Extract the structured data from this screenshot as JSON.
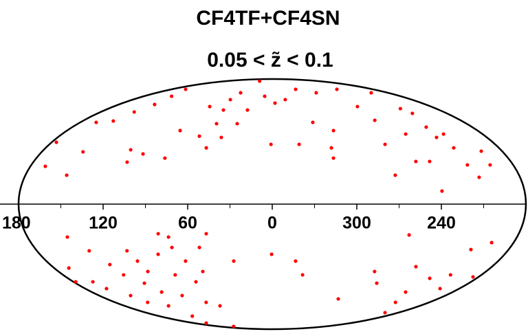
{
  "chart_data": {
    "type": "scatter",
    "title": "CF4TF+CF4SN",
    "subtitle": "0.05 < z̃ < 0.1",
    "color": "#ff0000",
    "ylim": [
      -90,
      90
    ],
    "xticks": [
      180,
      120,
      60,
      0,
      300,
      240
    ],
    "x": [
      168.9,
      149.9,
      176.2,
      147.8,
      165,
      150.9,
      111.5,
      109.3,
      100.1,
      144.8,
      138.1,
      81.9,
      80.8,
      141,
      61.6,
      52.4,
      51.6,
      52.6,
      54.1,
      49.2,
      32.5,
      42.7,
      26.7,
      49.3,
      10.6,
      356.7,
      343.2,
      1,
      338.3,
      322,
      291.6,
      244.5,
      306.3,
      313,
      313.3,
      263.4,
      206,
      262,
      268.9,
      270.3,
      245.7,
      215.5,
      251.6,
      241.2,
      222.2,
      213.3,
      238.9,
      215.8,
      214.2,
      196.3,
      197.2,
      209.7,
      221.4,
      219.3,
      318.2,
      154.8,
      70.9,
      150.7,
      167.9,
      177.9,
      140,
      162.4,
      159.5,
      131.6,
      127.9,
      111.1,
      147.3,
      107.4,
      117.1,
      142.9,
      88.4,
      110.4,
      126.5,
      76.3,
      83.5,
      93.7,
      69.1,
      69.1,
      55.1,
      58.5,
      48.2,
      75.8,
      127.5,
      130.7,
      63.7,
      151.6,
      0.5,
      341.4,
      333.9,
      288.2,
      273.8,
      264.3,
      199,
      218.7,
      226.9,
      259.8,
      242.3,
      221.2,
      198.5,
      208.7,
      196.4,
      184.8,
      206.6,
      30.7,
      83.3,
      75.9,
      104.8
    ],
    "y": [
      27.2,
      20.8,
      44.5,
      37.6,
      58.8,
      59.8,
      39.1,
      30.2,
      36.1,
      66.3,
      71.7,
      33.1,
      52.9,
      77.6,
      48.9,
      40.5,
      57.9,
      67.7,
      75.2,
      80.1,
      57.9,
      48,
      67.7,
      88.5,
      77.6,
      72.7,
      75.2,
      43,
      43,
      58.8,
      80.1,
      82.6,
      52.9,
      40.5,
      33.1,
      70.2,
      80.1,
      60.3,
      43,
      20.8,
      50.4,
      65.3,
      30.7,
      30.7,
      48,
      50.4,
      9.4,
      40.5,
      28.2,
      38.1,
      28.2,
      19.3,
      55.4,
      68.7,
      82.6,
      82.6,
      70.2,
      -23.7,
      -46,
      -55.9,
      -33.6,
      -55.9,
      -60.8,
      -43.5,
      -50.9,
      -33.6,
      -65.8,
      -41,
      -56.9,
      -70.7,
      -36.1,
      -63.3,
      -73.2,
      -23.7,
      -50.9,
      -65.8,
      -41,
      -55.9,
      -31.2,
      -48.5,
      -21.3,
      -70.7,
      -80.6,
      -88,
      -73.2,
      -85.6,
      -36.1,
      -41,
      -50.9,
      -68.2,
      -48.5,
      -56.9,
      -78.1,
      -70.7,
      -63.3,
      -22.2,
      -45,
      -53.4,
      -60.8,
      -32.7,
      -27.7,
      -52.4,
      -50.9,
      -41,
      -21.3,
      -31.2,
      -48.5
    ]
  }
}
